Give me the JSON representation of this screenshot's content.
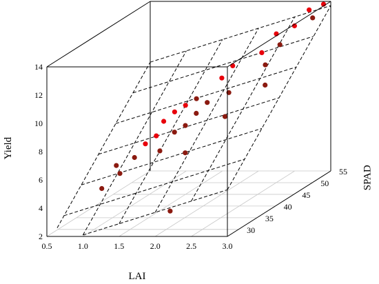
{
  "chart_data": {
    "type": "scatter3d",
    "x_axis": {
      "label": "LAI",
      "range": [
        0.5,
        3.0
      ],
      "ticks": [
        "0.5",
        "1.0",
        "1.5",
        "2.0",
        "2.5",
        "3.0"
      ]
    },
    "y_axis": {
      "label": "SPAD",
      "range": [
        27,
        55
      ],
      "ticks": [
        "30",
        "35",
        "40",
        "45",
        "50",
        "55"
      ]
    },
    "z_axis": {
      "label": "Yield",
      "range": [
        2,
        14
      ],
      "ticks": [
        "2",
        "4",
        "6",
        "8",
        "10",
        "12",
        "14"
      ]
    },
    "fitted_surface": "dashed regression plane",
    "series": [
      {
        "marker": "red-dot",
        "color": "#e8000b",
        "points": [
          [
            0.8,
            36,
            3.9
          ],
          [
            0.9,
            38,
            5.2
          ],
          [
            1.0,
            37,
            4.8
          ],
          [
            1.1,
            39,
            5.6
          ],
          [
            1.2,
            40,
            6.4
          ],
          [
            1.3,
            41,
            6.8
          ],
          [
            1.3,
            43,
            7.5
          ],
          [
            1.4,
            40,
            5.9
          ],
          [
            1.4,
            44,
            8.0
          ],
          [
            1.5,
            42,
            6.9
          ],
          [
            1.5,
            45,
            8.3
          ],
          [
            1.6,
            43,
            7.2
          ],
          [
            1.6,
            46,
            8.6
          ],
          [
            1.7,
            41,
            5.6
          ],
          [
            1.7,
            44,
            7.9
          ],
          [
            1.8,
            45,
            8.5
          ],
          [
            1.9,
            33,
            2.8
          ],
          [
            1.9,
            47,
            9.9
          ],
          [
            2.0,
            48,
            10.6
          ],
          [
            2.1,
            45,
            9.2
          ],
          [
            2.2,
            42,
            8.0
          ],
          [
            2.3,
            50,
            11.2
          ],
          [
            2.4,
            49,
            10.5
          ],
          [
            2.4,
            52,
            12.2
          ],
          [
            2.5,
            51,
            11.6
          ],
          [
            2.5,
            47,
            9.4
          ],
          [
            2.6,
            53,
            12.6
          ],
          [
            2.7,
            55,
            13.4
          ],
          [
            2.8,
            54,
            13.0
          ],
          [
            2.9,
            55,
            13.8
          ]
        ]
      }
    ]
  }
}
